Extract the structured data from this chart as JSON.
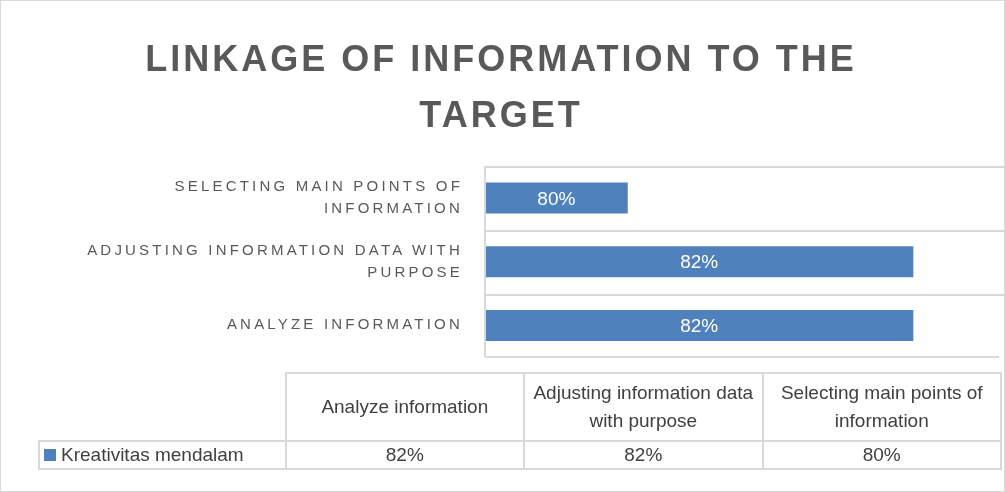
{
  "chart_data": {
    "type": "bar",
    "orientation": "horizontal",
    "title": "LINKAGE OF INFORMATION TO THE TARGET",
    "categories": [
      "SELECTING MAIN POINTS OF INFORMATION",
      "ADJUSTING INFORMATION DATA WITH PURPOSE",
      "ANALYZE INFORMATION"
    ],
    "annotations": [
      "Analyze information",
      "Adjusting information data with purpose",
      "Selecting main points of information"
    ],
    "series": [
      {
        "name": "Kreativitas mendalam",
        "color": "#4f81bd",
        "values": [
          80,
          82,
          82
        ],
        "value_labels": [
          "80%",
          "82%",
          "82%"
        ]
      }
    ],
    "xlim": [
      79,
      82.6
    ],
    "tick_labels": "y",
    "legend": "bottom"
  }
}
